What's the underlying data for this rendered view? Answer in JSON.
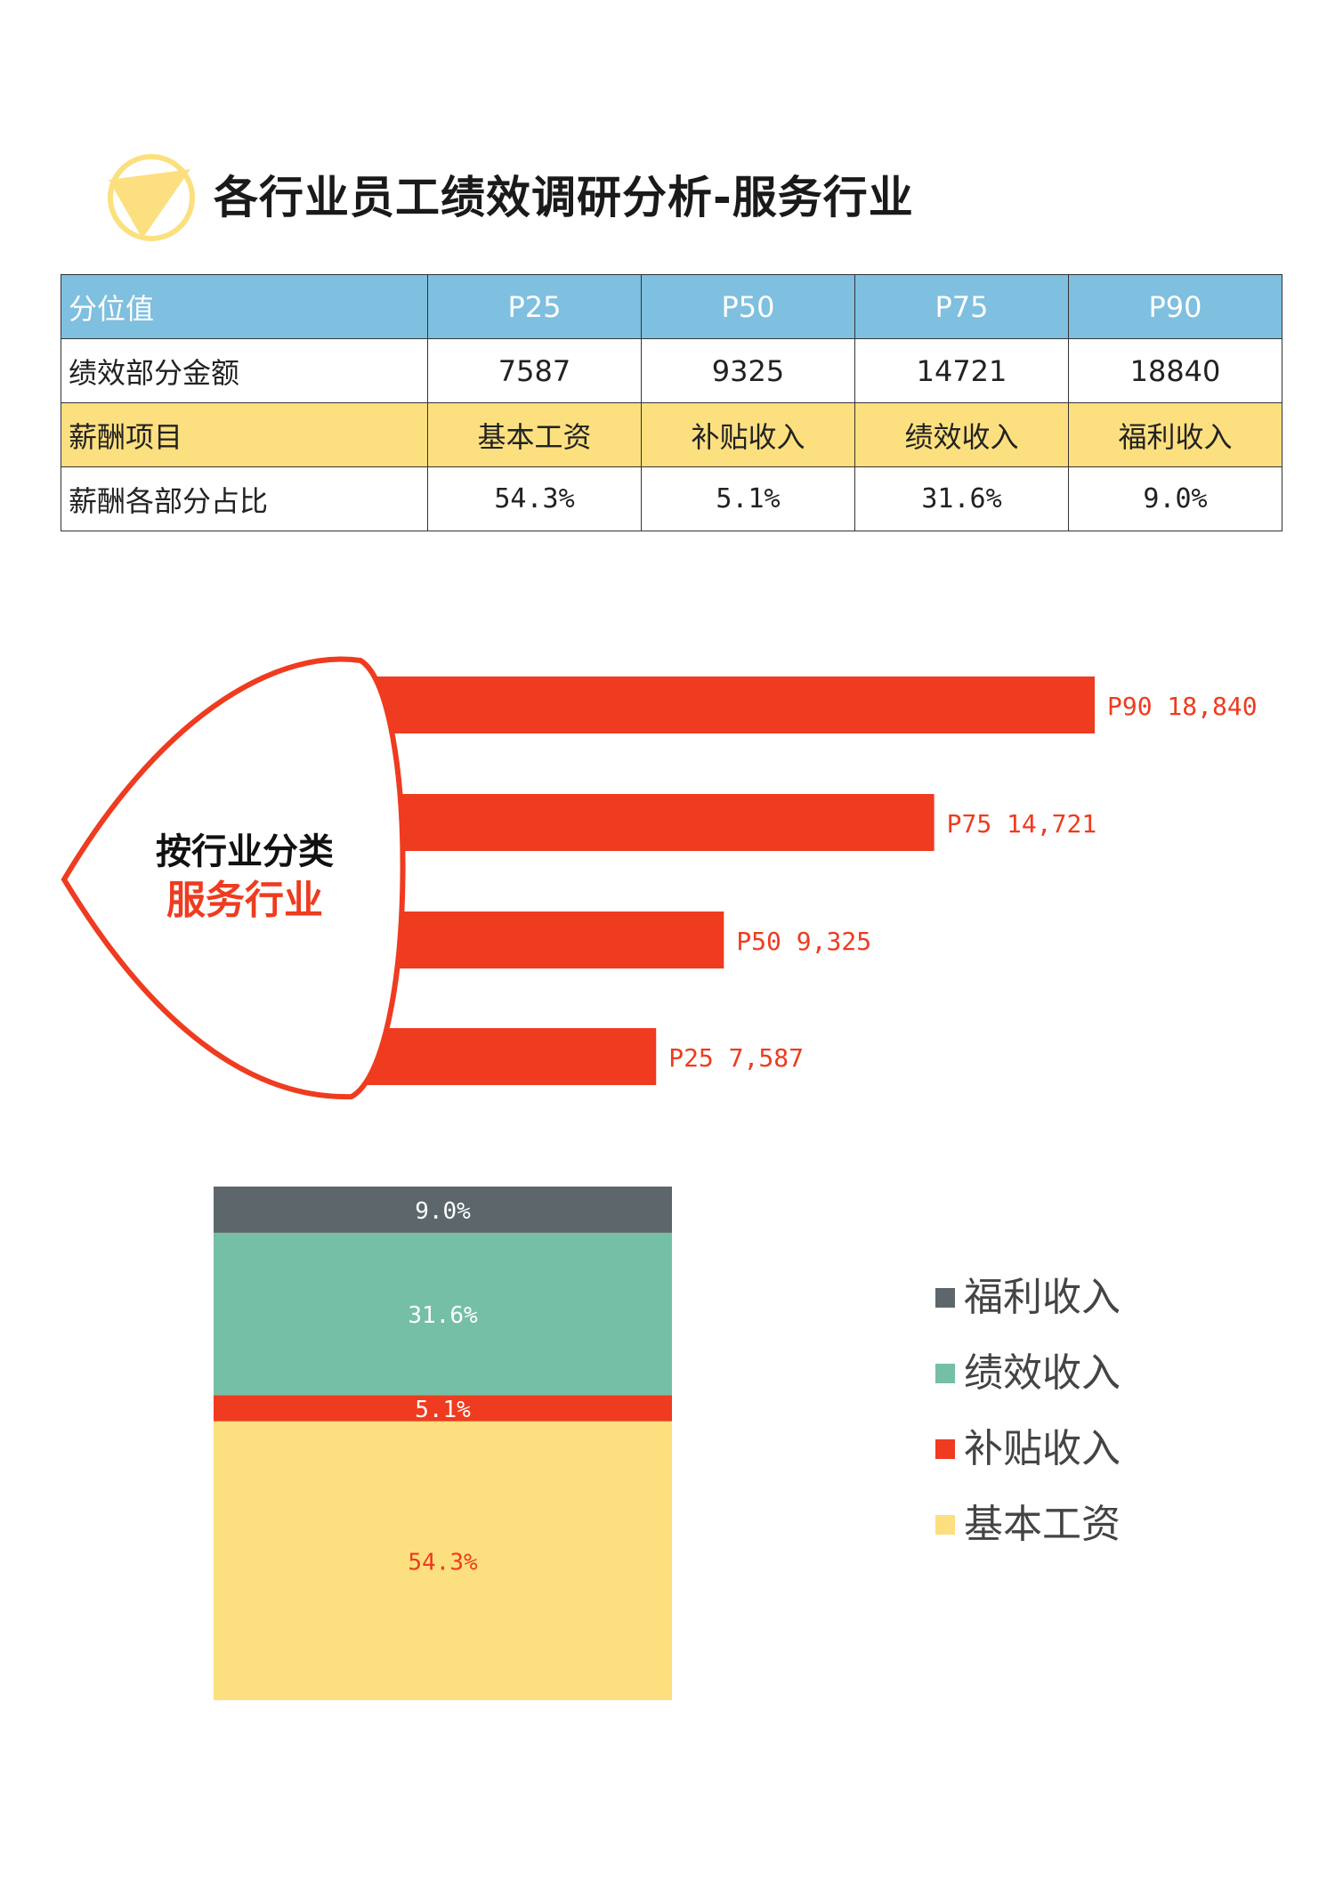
{
  "title": "各行业员工绩效调研分析-服务行业",
  "table": {
    "rows": [
      {
        "label": "分位值",
        "cells": [
          "P25",
          "P50",
          "P75",
          "P90"
        ]
      },
      {
        "label": "绩效部分金额",
        "cells": [
          "7587",
          "9325",
          "14721",
          "18840"
        ]
      },
      {
        "label": "薪酬项目",
        "cells": [
          "基本工资",
          "补贴收入",
          "绩效收入",
          "福利收入"
        ]
      },
      {
        "label": "薪酬各部分占比",
        "cells": [
          "54.3%",
          "5.1%",
          "31.6%",
          "9.0%"
        ]
      }
    ]
  },
  "badge": {
    "line1": "按行业分类",
    "line2": "服务行业"
  },
  "colors": {
    "accent_red": "#ef3b1f",
    "yellow": "#fce07f",
    "teal": "#74bfa6",
    "gray": "#5d666b",
    "header_blue": "#7fbfdf"
  },
  "chart_data": [
    {
      "type": "bar",
      "orientation": "horizontal",
      "categories": [
        "P90",
        "P75",
        "P50",
        "P25"
      ],
      "values": [
        18840,
        14721,
        9325,
        7587
      ],
      "data_labels": [
        "P90 18,840",
        "P75 14,721",
        "P50 9,325",
        "P25 7,587"
      ]
    },
    {
      "type": "bar",
      "stacked": true,
      "series": [
        {
          "name": "基本工资",
          "values": [
            54.3
          ],
          "label": "54.3%",
          "color": "#fce07f",
          "label_color": "#ef3b1f"
        },
        {
          "name": "补贴收入",
          "values": [
            5.1
          ],
          "label": "5.1%",
          "color": "#ef3b1f",
          "label_color": "#ffffff"
        },
        {
          "name": "绩效收入",
          "values": [
            31.6
          ],
          "label": "31.6%",
          "color": "#74bfa6",
          "label_color": "#ffffff"
        },
        {
          "name": "福利收入",
          "values": [
            9.0
          ],
          "label": "9.0%",
          "color": "#5d666b",
          "label_color": "#ffffff"
        }
      ],
      "legend": [
        "福利收入",
        "绩效收入",
        "补贴收入",
        "基本工资"
      ],
      "legend_position": "right"
    }
  ]
}
